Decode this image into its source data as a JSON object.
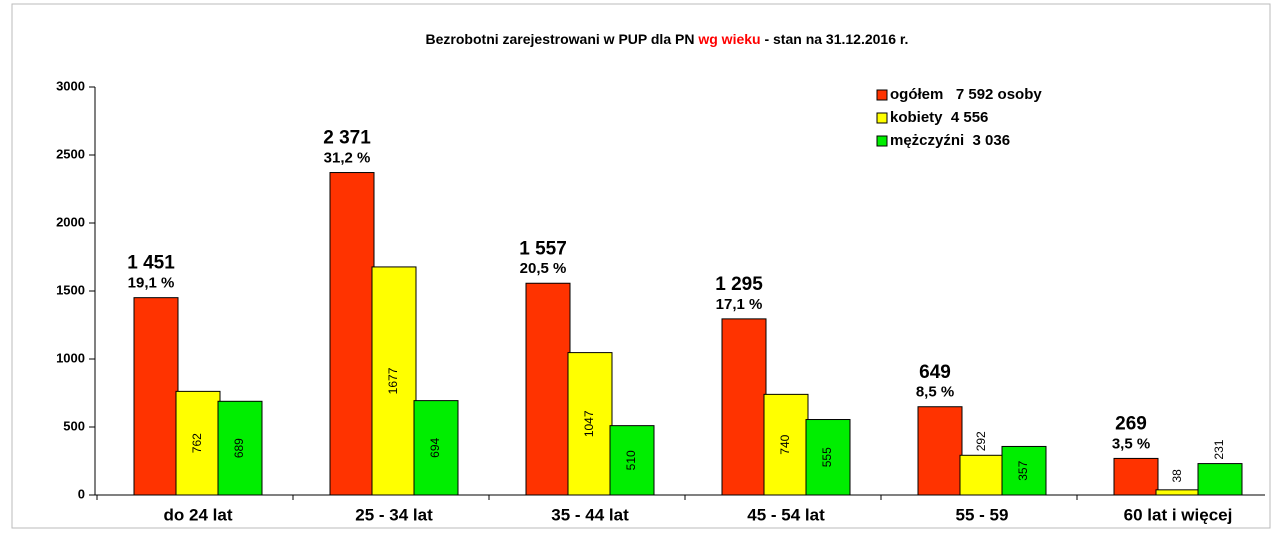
{
  "chart_data": {
    "type": "bar",
    "title": [
      "Bezrobotni zarejestrowani w PUP dla PN ",
      "wg wieku",
      " - stan na 31.12.2016 r."
    ],
    "title_colors": [
      "#000000",
      "#ff0000",
      "#000000"
    ],
    "categories": [
      "do 24 lat",
      "25 - 34 lat",
      "35 - 44 lat",
      "45 - 54 lat",
      "55 - 59",
      "60 lat i więcej"
    ],
    "series": [
      {
        "name": "ogółem   7 592 osoby",
        "color": "#ff3300",
        "values": [
          1451,
          2371,
          1557,
          1295,
          649,
          269
        ],
        "value_labels": [
          "1 451",
          "2 371",
          "1 557",
          "1 295",
          "649",
          "269"
        ],
        "shares": [
          19.1,
          31.2,
          20.5,
          17.1,
          8.5,
          3.5
        ],
        "share_labels": [
          "19,1 %",
          "31,2 %",
          "20,5 %",
          "17,1 %",
          "8,5 %",
          "3,5 %"
        ]
      },
      {
        "name": "kobiety  4 556",
        "color": "#ffff00",
        "values": [
          762,
          1677,
          1047,
          740,
          292,
          38
        ]
      },
      {
        "name": "mężczyźni  3 036",
        "color": "#00ee00",
        "values": [
          689,
          694,
          510,
          555,
          357,
          231
        ]
      }
    ],
    "ylim": [
      0,
      3000
    ],
    "yticks": [
      0,
      500,
      1000,
      1500,
      2000,
      2500,
      3000
    ],
    "legend": "top-right"
  }
}
